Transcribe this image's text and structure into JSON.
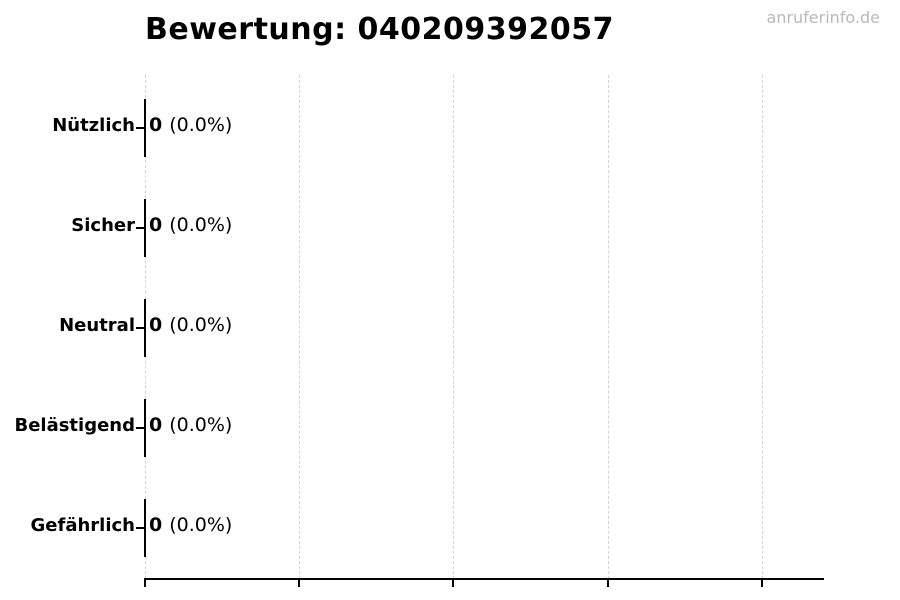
{
  "chart_data": {
    "type": "bar",
    "orientation": "horizontal",
    "title": "Bewertung: 040209392057",
    "watermark": "anruferinfo.de",
    "categories": [
      "Nützlich",
      "Sicher",
      "Neutral",
      "Belästigend",
      "Gefährlich"
    ],
    "values": [
      0,
      0,
      0,
      0,
      0
    ],
    "percentages": [
      0.0,
      0.0,
      0.0,
      0.0,
      0.0
    ],
    "value_labels": [
      {
        "count": "0",
        "pct": "(0.0%)"
      },
      {
        "count": "0",
        "pct": "(0.0%)"
      },
      {
        "count": "0",
        "pct": "(0.0%)"
      },
      {
        "count": "0",
        "pct": "(0.0%)"
      },
      {
        "count": "0",
        "pct": "(0.0%)"
      }
    ],
    "x_tick_labels": [],
    "gridline_count": 5,
    "layout": {
      "legend": "none",
      "grid": "vertical-dashed",
      "title_align": "left"
    },
    "colors": {
      "text": "#000000",
      "bar_edge": "#000000",
      "gridline": "#d4d4d4",
      "axis": "#000000",
      "watermark": "#b9b9b9",
      "background": "#ffffff"
    }
  }
}
